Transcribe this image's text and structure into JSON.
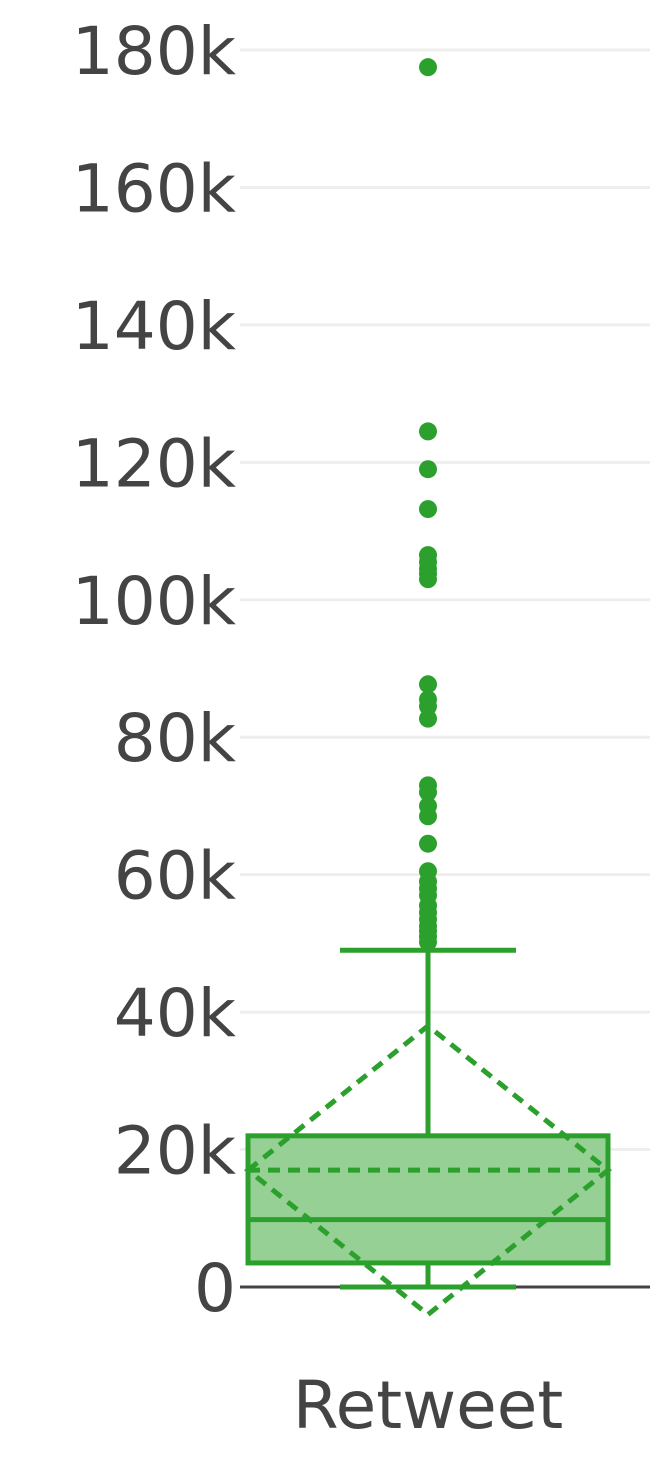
{
  "chart_data": {
    "type": "box",
    "categories": [
      "Retweet"
    ],
    "ylim": [
      0,
      180000
    ],
    "yticks": [
      0,
      20000,
      40000,
      60000,
      80000,
      100000,
      120000,
      140000,
      160000,
      180000
    ],
    "ytick_labels": [
      "0",
      "20k",
      "40k",
      "60k",
      "80k",
      "100k",
      "120k",
      "140k",
      "160k",
      "180k"
    ],
    "grid": true,
    "color": "#2ca02c",
    "fill_color": "#97d094",
    "series": [
      {
        "category": "Retweet",
        "q1": 3500,
        "median": 9800,
        "q3": 22000,
        "whisker_low": 0,
        "whisker_high": 49000,
        "mean": 17000,
        "mean_plus_sd": 38000,
        "mean_minus_sd": -4000,
        "outliers": [
          177500,
          124500,
          119000,
          113200,
          106500,
          105500,
          104500,
          103800,
          103000,
          87700,
          85500,
          84500,
          82700,
          73000,
          72000,
          70000,
          68500,
          64500,
          60500,
          59000,
          58000,
          57000,
          55500,
          54500,
          53500,
          52500,
          51800,
          51000,
          50200
        ]
      }
    ]
  }
}
